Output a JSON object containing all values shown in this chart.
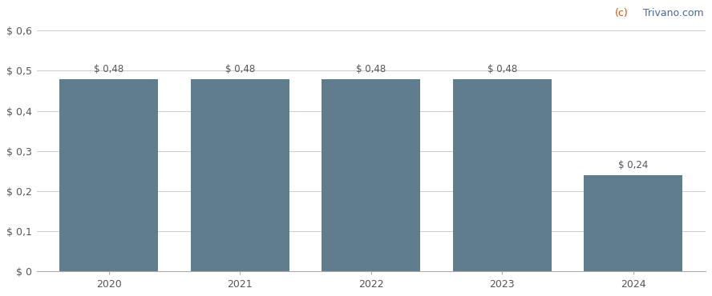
{
  "categories": [
    "2020",
    "2021",
    "2022",
    "2023",
    "2024"
  ],
  "values": [
    0.48,
    0.48,
    0.48,
    0.48,
    0.24
  ],
  "bar_color": "#5f7d8c",
  "bar_labels": [
    "$ 0,48",
    "$ 0,48",
    "$ 0,48",
    "$ 0,48",
    "$ 0,24"
  ],
  "yticks": [
    0,
    0.1,
    0.2,
    0.3,
    0.4,
    0.5,
    0.6
  ],
  "ytick_labels": [
    "$ 0",
    "$ 0,1",
    "$ 0,2",
    "$ 0,3",
    "$ 0,4",
    "$ 0,5",
    "$ 0,6"
  ],
  "ylim": [
    0,
    0.66
  ],
  "background_color": "#ffffff",
  "grid_color": "#cccccc",
  "watermark_c": "(c)",
  "watermark_rest": " Trivano.com",
  "watermark_color_c": "#d45000",
  "watermark_color_rest": "#4466aa",
  "bar_label_color": "#555555",
  "bar_label_fontsize": 8.5,
  "tick_label_fontsize": 9,
  "watermark_fontsize": 9,
  "bar_width": 0.75
}
